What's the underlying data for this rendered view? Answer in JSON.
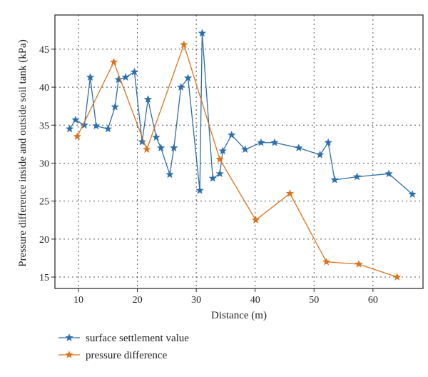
{
  "chart_data": {
    "type": "line",
    "title": "",
    "xlabel": "Distance (m)",
    "ylabel": "Pressure difference inside and outside soil tank (kPa)",
    "xlim": [
      6,
      68.5
    ],
    "ylim": [
      13.5,
      49.5
    ],
    "xticks": [
      10,
      20,
      30,
      40,
      50,
      60
    ],
    "yticks": [
      15,
      20,
      25,
      30,
      35,
      40,
      45
    ],
    "grid": true,
    "legend": "below-left",
    "series": [
      {
        "name": "surface settlement value",
        "color": "#2e6ea9",
        "marker": "star",
        "x": [
          8.5,
          9.5,
          11,
          12,
          13,
          15,
          16.2,
          16.8,
          18,
          19.5,
          20.8,
          21.8,
          23.2,
          24,
          25.5,
          26.2,
          27.4,
          28.6,
          30.6,
          31,
          32.8,
          34,
          34.5,
          36,
          38.3,
          41,
          43.3,
          47.4,
          51,
          52.4,
          53.5,
          57.3,
          62.7,
          66.7
        ],
        "y": [
          34.5,
          35.7,
          35.0,
          41.3,
          34.9,
          34.5,
          37.4,
          41.0,
          41.3,
          42.0,
          32.8,
          38.4,
          33.4,
          32.0,
          28.5,
          32.0,
          40.0,
          41.2,
          26.4,
          47.1,
          28.0,
          28.6,
          31.6,
          33.7,
          31.8,
          32.7,
          32.7,
          32.0,
          31.1,
          32.7,
          27.8,
          28.2,
          28.6,
          25.9
        ]
      },
      {
        "name": "pressure difference",
        "color": "#d9731c",
        "marker": "star",
        "x": [
          9.8,
          16,
          21.6,
          27.9,
          34,
          40.1,
          45.9,
          52.1,
          57.6,
          64.1
        ],
        "y": [
          33.5,
          43.3,
          31.8,
          45.6,
          30.5,
          22.5,
          26.0,
          17.0,
          16.7,
          15.0
        ]
      }
    ]
  }
}
